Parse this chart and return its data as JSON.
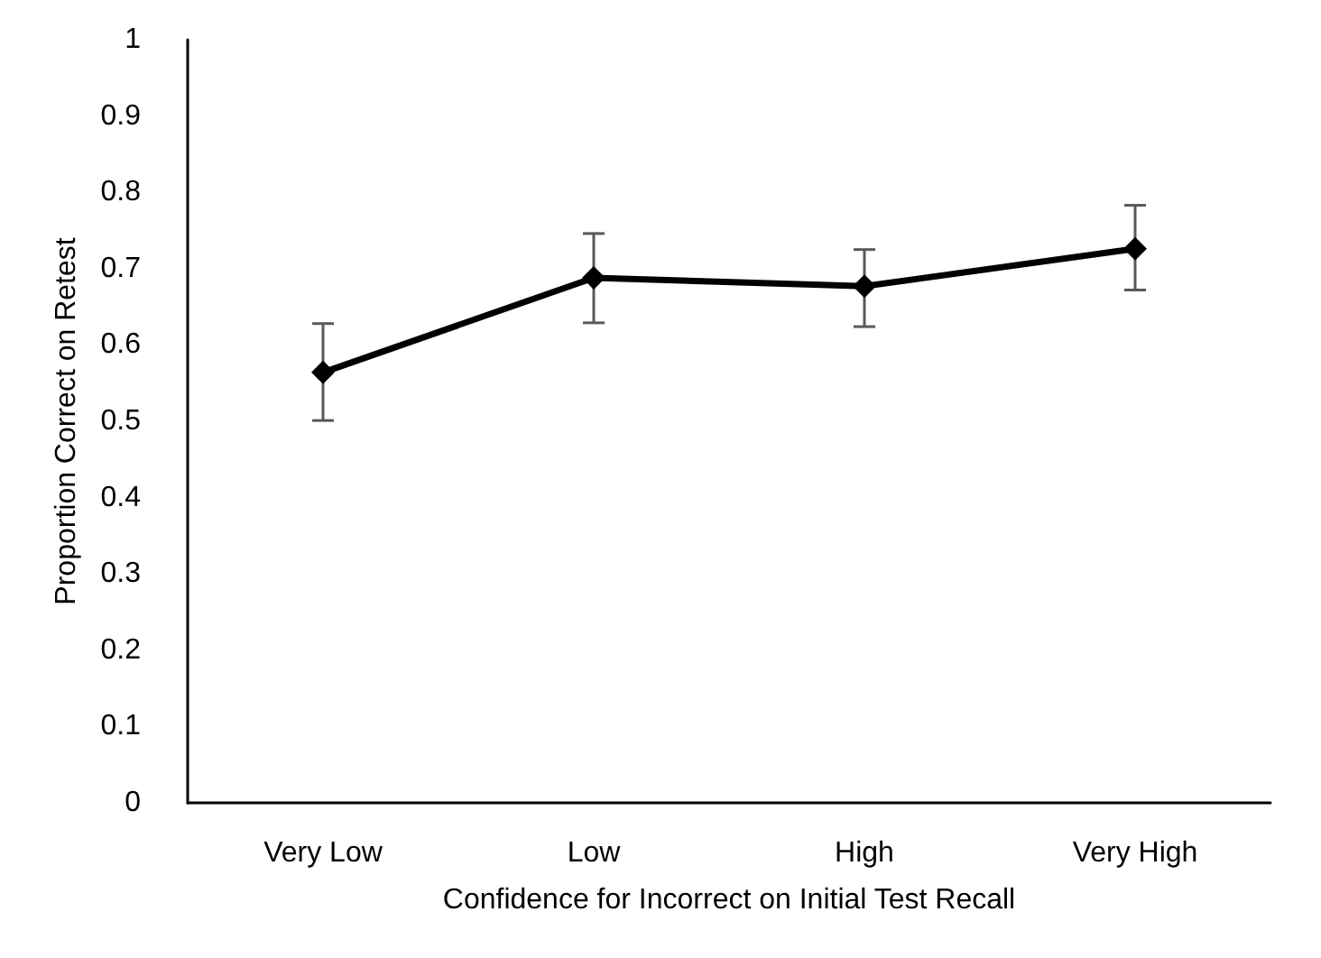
{
  "chart_data": {
    "type": "line",
    "xlabel": "Confidence for Incorrect on Initial Test Recall",
    "ylabel": "Proportion Correct on Retest",
    "categories": [
      "Very Low",
      "Low",
      "High",
      "Very High"
    ],
    "series": [
      {
        "color": "#000000",
        "values": [
          0.564,
          0.688,
          0.677,
          0.726
        ],
        "errors": [
          [
            0.501,
            0.628
          ],
          [
            0.629,
            0.746
          ],
          [
            0.624,
            0.725
          ],
          [
            0.672,
            0.783
          ]
        ]
      }
    ],
    "ylim": [
      0,
      1
    ],
    "yticks": [
      0,
      0.1,
      0.2,
      0.3,
      0.4,
      0.5,
      0.6,
      0.7,
      0.8,
      0.9,
      1
    ],
    "grid": false,
    "marker": "diamond",
    "line_style": "solid"
  }
}
